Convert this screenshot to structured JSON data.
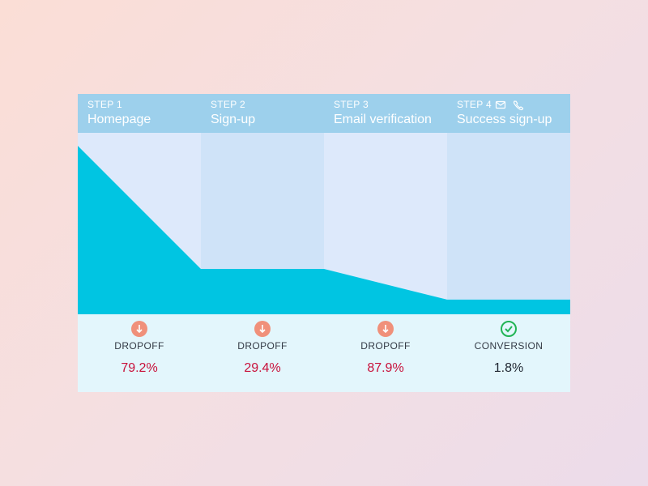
{
  "steps": [
    {
      "step": "STEP 1",
      "name": "Homepage",
      "metric": "DROPOFF",
      "value": "79.2%"
    },
    {
      "step": "STEP 2",
      "name": "Sign-up",
      "metric": "DROPOFF",
      "value": "29.4%"
    },
    {
      "step": "STEP 3",
      "name": "Email verification",
      "metric": "DROPOFF",
      "value": "87.9%"
    },
    {
      "step": "STEP 4",
      "name": "Success sign-up",
      "metric": "CONVERSION",
      "value": "1.8%"
    }
  ],
  "funnel": {
    "values": [
      100,
      26.9,
      26.9,
      8.7,
      8.7
    ],
    "color": "#00c5e2"
  }
}
